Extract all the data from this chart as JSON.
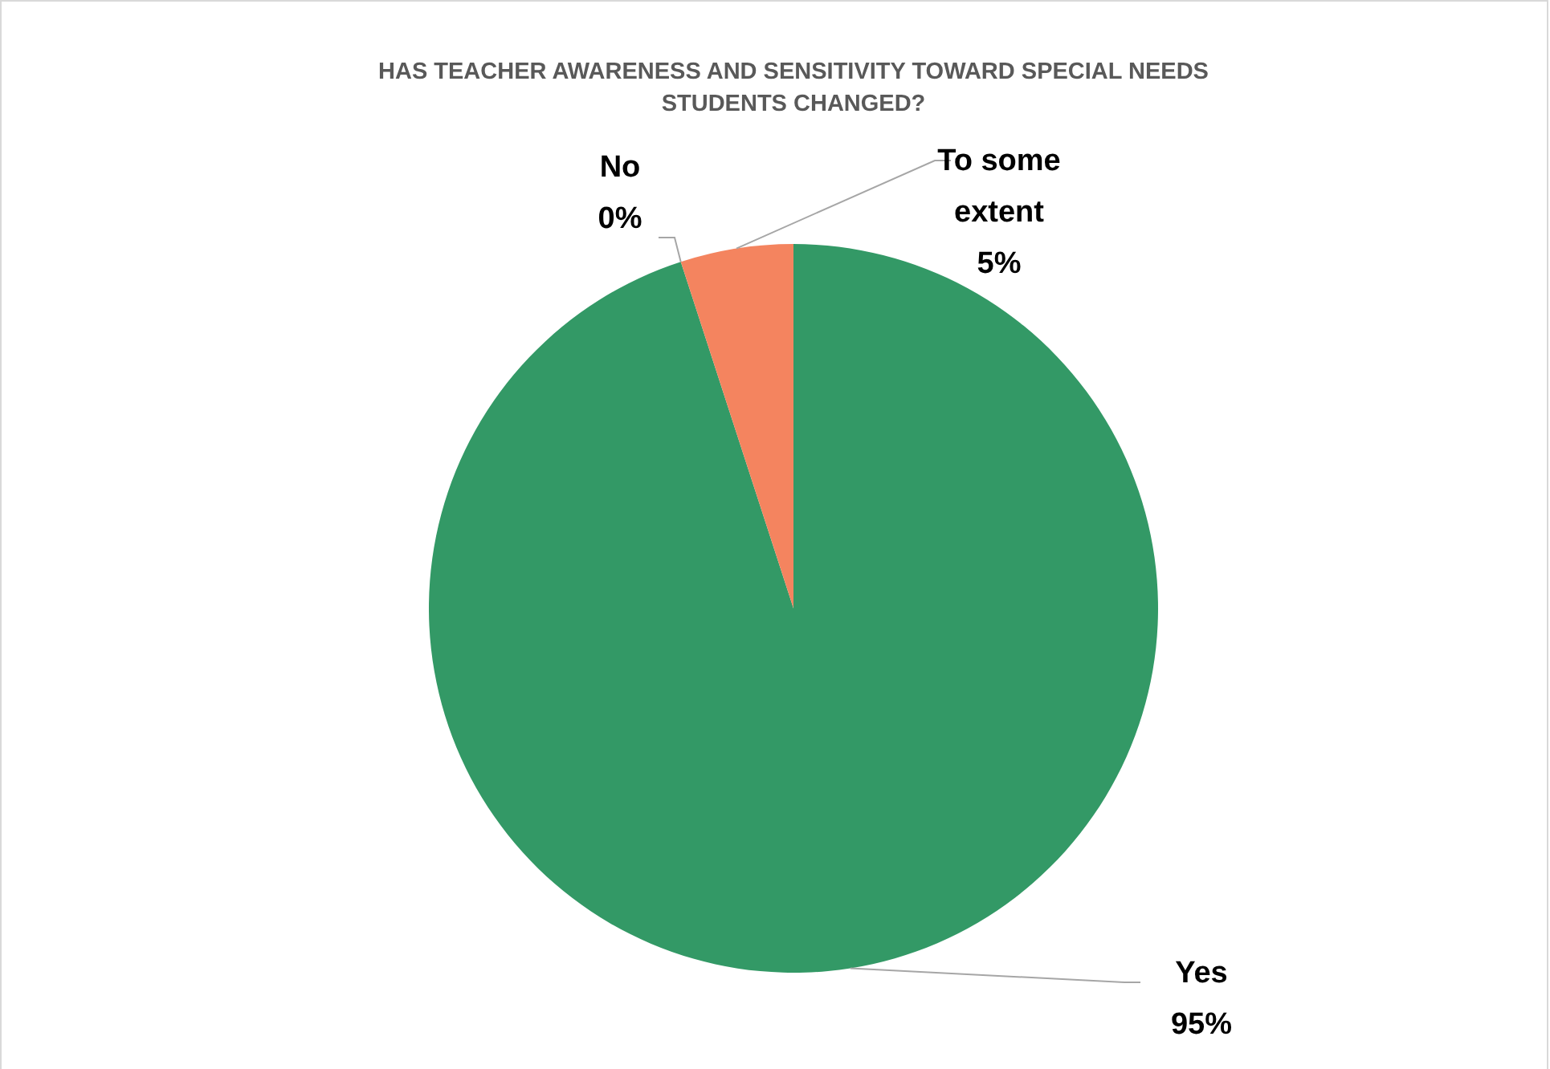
{
  "chart_data": {
    "type": "pie",
    "title": "HAS TEACHER AWARENESS AND SENSITIVITY TOWARD SPECIAL NEEDS STUDENTS CHANGED?",
    "categories": [
      "Yes",
      "No",
      "To some extent"
    ],
    "values": [
      95,
      0,
      5
    ],
    "value_labels": [
      "95%",
      "0%",
      "5%"
    ],
    "colors": [
      "#339966",
      "#a5a5a5",
      "#f4845f"
    ]
  }
}
